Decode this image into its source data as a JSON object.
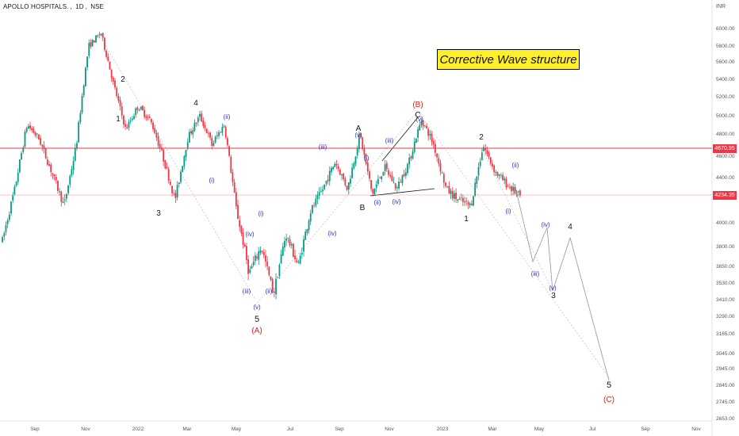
{
  "header": {
    "symbol": "APOLLO HOSPITALS.",
    "interval": "1D",
    "exchange": "NSE"
  },
  "currency": "INR",
  "chart_title": "Corrective Wave structure",
  "chart_data": {
    "type": "candlestick",
    "title": "Corrective Wave structure",
    "x_ticks": [
      "Sep",
      "Nov",
      "2022",
      "Mar",
      "May",
      "Jul",
      "Sep",
      "Nov",
      "2023",
      "Mar",
      "May",
      "Jul",
      "Sep",
      "Nov"
    ],
    "y_ticks": [
      "6000.00",
      "5800.00",
      "5600.00",
      "5400.00",
      "5200.00",
      "5000.00",
      "4800.00",
      "4600.00",
      "4400.00",
      "4000.00",
      "3800.00",
      "3650.00",
      "3530.00",
      "3410.00",
      "3290.00",
      "3165.00",
      "3045.00",
      "2945.00",
      "2845.00",
      "2745.00",
      "2653.00"
    ],
    "price_lines": [
      {
        "value": 4670.95,
        "label": "4670.95",
        "color": "#f23645"
      },
      {
        "value": 4234.35,
        "label": "4234.35",
        "color": "#f23645"
      }
    ],
    "wave_labels": {
      "primary": [
        "(A)",
        "(B)",
        "(C)"
      ],
      "intermediate": [
        "1",
        "2",
        "3",
        "4",
        "5",
        "A",
        "B",
        "C",
        "1",
        "2",
        "3",
        "4",
        "5"
      ],
      "minor": [
        "(i)",
        "(ii)",
        "(iii)",
        "(iv)",
        "(v)"
      ]
    },
    "price_path": [
      {
        "t": "2021-08",
        "v": 3850
      },
      {
        "t": "2021-08",
        "v": 4300
      },
      {
        "t": "2021-09",
        "v": 4900
      },
      {
        "t": "2021-09",
        "v": 4750
      },
      {
        "t": "2021-10",
        "v": 4450
      },
      {
        "t": "2021-10",
        "v": 4150
      },
      {
        "t": "2021-11",
        "v": 4700
      },
      {
        "t": "2021-11",
        "v": 5800
      },
      {
        "t": "2021-11",
        "v": 5950
      },
      {
        "t": "2021-12",
        "v": 5350
      },
      {
        "t": "2021-12",
        "v": 4850
      },
      {
        "t": "2022-01",
        "v": 5100
      },
      {
        "t": "2022-01",
        "v": 4950
      },
      {
        "t": "2022-02",
        "v": 4600
      },
      {
        "t": "2022-02",
        "v": 4200
      },
      {
        "t": "2022-03",
        "v": 4750
      },
      {
        "t": "2022-03",
        "v": 5000
      },
      {
        "t": "2022-04",
        "v": 4700
      },
      {
        "t": "2022-04",
        "v": 4900
      },
      {
        "t": "2022-05",
        "v": 4100
      },
      {
        "t": "2022-05",
        "v": 3600
      },
      {
        "t": "2022-06",
        "v": 3800
      },
      {
        "t": "2022-06",
        "v": 3450
      },
      {
        "t": "2022-06",
        "v": 3900
      },
      {
        "t": "2022-07",
        "v": 3650
      },
      {
        "t": "2022-07",
        "v": 4100
      },
      {
        "t": "2022-08",
        "v": 4300
      },
      {
        "t": "2022-08",
        "v": 4550
      },
      {
        "t": "2022-09",
        "v": 4300
      },
      {
        "t": "2022-09",
        "v": 4800
      },
      {
        "t": "2022-09",
        "v": 4250
      },
      {
        "t": "2022-10",
        "v": 4500
      },
      {
        "t": "2022-10",
        "v": 4300
      },
      {
        "t": "2022-11",
        "v": 4550
      },
      {
        "t": "2022-11",
        "v": 4950
      },
      {
        "t": "2022-12",
        "v": 4700
      },
      {
        "t": "2022-12",
        "v": 4300
      },
      {
        "t": "2023-01",
        "v": 4200
      },
      {
        "t": "2023-01",
        "v": 4150
      },
      {
        "t": "2023-02",
        "v": 4700
      },
      {
        "t": "2023-02",
        "v": 4450
      },
      {
        "t": "2023-03",
        "v": 4330
      },
      {
        "t": "2023-03",
        "v": 4234
      }
    ]
  }
}
